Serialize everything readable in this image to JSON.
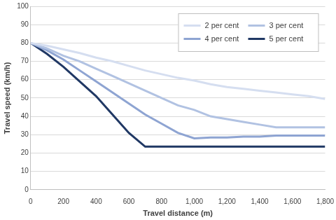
{
  "chart_data": {
    "type": "line",
    "x_label": "Travel distance (m)",
    "y_label": "Travel speed (km/h)",
    "x": [
      0,
      100,
      200,
      300,
      400,
      500,
      600,
      700,
      800,
      900,
      1000,
      1100,
      1200,
      1300,
      1400,
      1500,
      1600,
      1700,
      1800
    ],
    "series": [
      {
        "name": "2 per cent",
        "color": "#d5def0",
        "values": [
          80,
          78.5,
          76.5,
          74.5,
          72,
          70,
          67.5,
          65,
          63,
          61,
          59.5,
          57.5,
          56,
          55,
          54,
          53,
          52,
          51,
          49.5
        ]
      },
      {
        "name": "3 per cent",
        "color": "#b1c2e2",
        "values": [
          80,
          77,
          73,
          70,
          66,
          62,
          58,
          54,
          50,
          46,
          43.5,
          40,
          38.5,
          37,
          35.5,
          34,
          34,
          34,
          34
        ]
      },
      {
        "name": "4 per cent",
        "color": "#8ea4d2",
        "values": [
          80,
          76,
          71,
          65,
          59,
          53,
          47,
          41,
          36,
          31,
          28,
          28.5,
          28.5,
          29,
          29,
          29.5,
          29.5,
          29.5,
          29.5
        ]
      },
      {
        "name": "5 per cent",
        "color": "#203864",
        "values": [
          80,
          74,
          67,
          59,
          51,
          41,
          31,
          23.5,
          23.5,
          23.5,
          23.5,
          23.5,
          23.5,
          23.5,
          23.5,
          23.5,
          23.5,
          23.5,
          23.5
        ]
      }
    ],
    "xlim": [
      0,
      1800
    ],
    "xticks": [
      0,
      200,
      400,
      600,
      800,
      {
        "value": 1000,
        "label": "1,000"
      },
      {
        "value": 1200,
        "label": "1,200"
      },
      {
        "value": 1400,
        "label": "1,400"
      },
      {
        "value": 1600,
        "label": "1,600"
      },
      {
        "value": 1800,
        "label": "1,800"
      }
    ],
    "ylim": [
      0,
      100
    ],
    "yticks": [
      0,
      10,
      20,
      30,
      40,
      50,
      60,
      70,
      80,
      90,
      100
    ],
    "grid": true,
    "legend": "upper right"
  }
}
